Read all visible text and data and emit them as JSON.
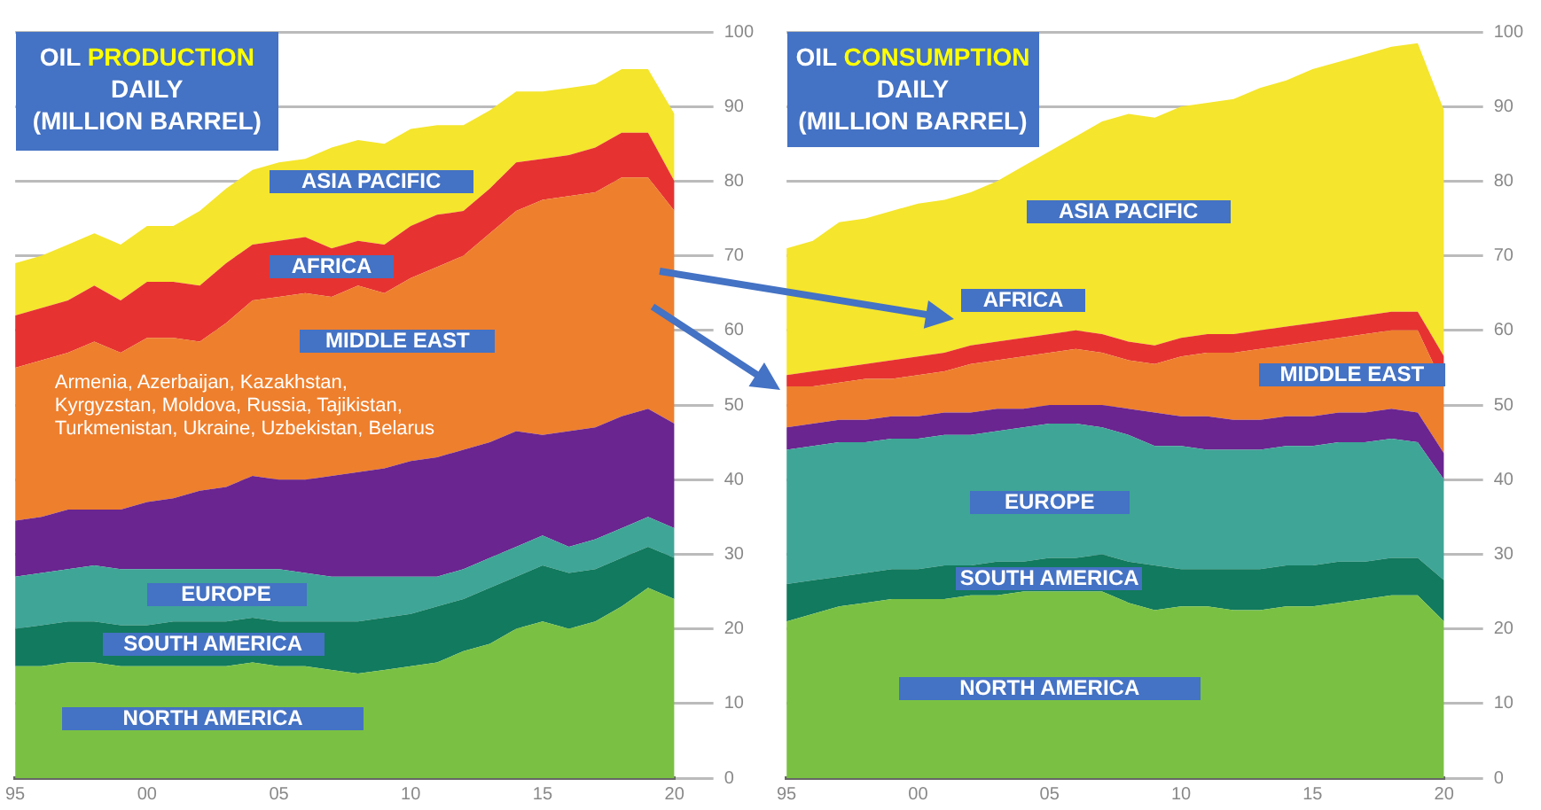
{
  "chart_data": [
    {
      "type": "area",
      "title": "OIL PRODUCTION DAILY (MILLION BARREL)",
      "stacked": true,
      "grid": "y",
      "legend": false,
      "x": [
        1995,
        1996,
        1997,
        1998,
        1999,
        2000,
        2001,
        2002,
        2003,
        2004,
        2005,
        2006,
        2007,
        2008,
        2009,
        2010,
        2011,
        2012,
        2013,
        2014,
        2015,
        2016,
        2017,
        2018,
        2019,
        2020
      ],
      "xlim": [
        1995,
        2020
      ],
      "xticks": [
        {
          "value": 1995,
          "label": "95"
        },
        {
          "value": 2000,
          "label": "00"
        },
        {
          "value": 2005,
          "label": "05"
        },
        {
          "value": 2010,
          "label": "10"
        },
        {
          "value": 2015,
          "label": "15"
        },
        {
          "value": 2020,
          "label": "20"
        }
      ],
      "ylim": [
        0,
        100
      ],
      "yticks": [
        0,
        10,
        20,
        30,
        40,
        50,
        60,
        70,
        80,
        90,
        100
      ],
      "series": [
        {
          "name": "NORTH AMERICA",
          "color": "#7ac143",
          "values": [
            15,
            15,
            15.5,
            15.5,
            15,
            15,
            15,
            15,
            15,
            15.5,
            15,
            15,
            14.5,
            14,
            14.5,
            15,
            15.5,
            17,
            18,
            20,
            21,
            20,
            21,
            23,
            25.5,
            24
          ]
        },
        {
          "name": "SOUTH AMERICA",
          "color": "#127a5e",
          "values": [
            5,
            5.5,
            5.5,
            5.5,
            5.5,
            5.5,
            6,
            6,
            6,
            6,
            6,
            6,
            6.5,
            7,
            7,
            7,
            7.5,
            7,
            7.5,
            7,
            7.5,
            7.5,
            7,
            6.5,
            5.5,
            5.5
          ]
        },
        {
          "name": "EUROPE",
          "color": "#3fa597",
          "values": [
            7,
            7,
            7,
            7.5,
            7.5,
            7.5,
            7,
            7,
            7,
            6.5,
            7,
            6.5,
            6,
            6,
            5.5,
            5,
            4,
            4,
            4,
            4,
            4,
            3.5,
            4,
            4,
            4,
            4
          ]
        },
        {
          "name": "Armenia, Azerbaijan, Kazakhstan, Kyrgyzstan, Moldova, Russia, Tajikistan, Turkmenistan, Ukraine, Uzbekistan, Belarus",
          "color": "#6a2590",
          "values": [
            7.5,
            7.5,
            8,
            7.5,
            8,
            9,
            9.5,
            10.5,
            11,
            12.5,
            12,
            12.5,
            13.5,
            14,
            14.5,
            15.5,
            16,
            16,
            15.5,
            15.5,
            13.5,
            15.5,
            15,
            15,
            14.5,
            14
          ]
        },
        {
          "name": "MIDDLE EAST",
          "color": "#ee7f2d",
          "values": [
            20.5,
            21,
            21,
            22.5,
            21,
            22,
            21.5,
            20,
            22,
            23.5,
            24.5,
            25,
            24,
            25,
            23.5,
            24.5,
            25.5,
            26,
            28,
            29.5,
            31.5,
            31.5,
            31.5,
            32,
            31,
            28.5
          ]
        },
        {
          "name": "AFRICA",
          "color": "#e63331",
          "values": [
            7,
            7,
            7,
            7.5,
            7,
            7.5,
            7.5,
            7.5,
            8,
            7.5,
            7.5,
            7.5,
            6.5,
            6,
            6.5,
            7,
            7,
            6,
            6,
            6.5,
            5.5,
            5.5,
            6,
            6,
            6,
            4
          ]
        },
        {
          "name": "ASIA PACIFIC",
          "color": "#f5e52c",
          "values": [
            7,
            7,
            7.5,
            7,
            7.5,
            7.5,
            7.5,
            10,
            10,
            10,
            10.5,
            10.5,
            13.5,
            13.5,
            13.5,
            13,
            12,
            11.5,
            10.5,
            9.5,
            9,
            9,
            8.5,
            8.5,
            8.5,
            9
          ]
        }
      ]
    },
    {
      "type": "area",
      "title": "OIL CONSUMPTION DAILY (MILLION BARREL)",
      "stacked": true,
      "grid": "y",
      "legend": false,
      "x": [
        1995,
        1996,
        1997,
        1998,
        1999,
        2000,
        2001,
        2002,
        2003,
        2004,
        2005,
        2006,
        2007,
        2008,
        2009,
        2010,
        2011,
        2012,
        2013,
        2014,
        2015,
        2016,
        2017,
        2018,
        2019,
        2020
      ],
      "xlim": [
        1995,
        2020
      ],
      "xticks": [
        {
          "value": 1995,
          "label": "95"
        },
        {
          "value": 2000,
          "label": "00"
        },
        {
          "value": 2005,
          "label": "05"
        },
        {
          "value": 2010,
          "label": "10"
        },
        {
          "value": 2015,
          "label": "15"
        },
        {
          "value": 2020,
          "label": "20"
        }
      ],
      "ylim": [
        0,
        100
      ],
      "yticks": [
        0,
        10,
        20,
        30,
        40,
        50,
        60,
        70,
        80,
        90,
        100
      ],
      "series": [
        {
          "name": "NORTH AMERICA",
          "color": "#7ac143",
          "values": [
            21,
            22,
            23,
            23.5,
            24,
            24,
            24,
            24.5,
            24.5,
            25,
            25,
            25,
            25,
            23.5,
            22.5,
            23,
            23,
            22.5,
            22.5,
            23,
            23,
            23.5,
            24,
            24.5,
            24.5,
            21
          ]
        },
        {
          "name": "SOUTH AMERICA",
          "color": "#127a5e",
          "values": [
            5,
            4.5,
            4,
            4,
            4,
            4,
            4.5,
            4,
            4.5,
            4,
            4.5,
            4.5,
            5,
            5.5,
            6,
            5,
            5,
            5.5,
            5.5,
            5.5,
            5.5,
            5.5,
            5,
            5,
            5,
            5.5
          ]
        },
        {
          "name": "EUROPE",
          "color": "#3fa597",
          "values": [
            18,
            18,
            18,
            17.5,
            17.5,
            17.5,
            17.5,
            17.5,
            17.5,
            18,
            18,
            18,
            17,
            17,
            16,
            16.5,
            16,
            16,
            16,
            16,
            16,
            16,
            16,
            16,
            15.5,
            13.5
          ]
        },
        {
          "color": "#6a2590",
          "values": [
            3,
            3,
            3,
            3,
            3,
            3,
            3,
            3,
            3,
            2.5,
            2.5,
            2.5,
            3,
            3.5,
            4.5,
            4,
            4.5,
            4,
            4,
            4,
            4,
            4,
            4,
            4,
            4,
            3.5
          ]
        },
        {
          "name": "MIDDLE EAST",
          "color": "#ee7f2d",
          "values": [
            5.5,
            5,
            5,
            5.5,
            5,
            5.5,
            5.5,
            6.5,
            6.5,
            7,
            7,
            7.5,
            7,
            6.5,
            6.5,
            8,
            8.5,
            9,
            9.5,
            9.5,
            10,
            10,
            10.5,
            10.5,
            11,
            9
          ]
        },
        {
          "name": "AFRICA",
          "color": "#e63331",
          "values": [
            1.5,
            2,
            2,
            2,
            2.5,
            2.5,
            2.5,
            2.5,
            2.5,
            2.5,
            2.5,
            2.5,
            2.5,
            2.5,
            2.5,
            2.5,
            2.5,
            2.5,
            2.5,
            2.5,
            2.5,
            2.5,
            2.5,
            2.5,
            2.5,
            4
          ]
        },
        {
          "name": "ASIA PACIFIC",
          "color": "#f5e52c",
          "values": [
            17,
            17.5,
            19.5,
            19.5,
            20,
            20.5,
            20.5,
            20.5,
            21.5,
            23,
            24.5,
            26,
            28.5,
            30.5,
            30.5,
            31,
            31,
            31.5,
            32.5,
            33,
            34,
            34.5,
            35,
            35.5,
            36,
            33
          ]
        }
      ]
    }
  ]
}
